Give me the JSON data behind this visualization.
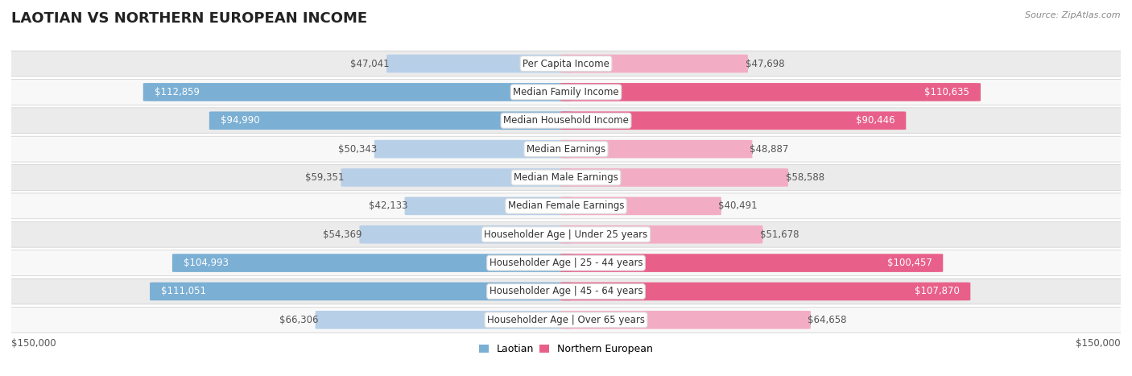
{
  "title": "LAOTIAN VS NORTHERN EUROPEAN INCOME",
  "source": "Source: ZipAtlas.com",
  "categories": [
    "Per Capita Income",
    "Median Family Income",
    "Median Household Income",
    "Median Earnings",
    "Median Male Earnings",
    "Median Female Earnings",
    "Householder Age | Under 25 years",
    "Householder Age | 25 - 44 years",
    "Householder Age | 45 - 64 years",
    "Householder Age | Over 65 years"
  ],
  "laotian_values": [
    47041,
    112859,
    94990,
    50343,
    59351,
    42133,
    54369,
    104993,
    111051,
    66306
  ],
  "northern_european_values": [
    47698,
    110635,
    90446,
    48887,
    58588,
    40491,
    51678,
    100457,
    107870,
    64658
  ],
  "laotian_labels": [
    "$47,041",
    "$112,859",
    "$94,990",
    "$50,343",
    "$59,351",
    "$42,133",
    "$54,369",
    "$104,993",
    "$111,051",
    "$66,306"
  ],
  "northern_european_labels": [
    "$47,698",
    "$110,635",
    "$90,446",
    "$48,887",
    "$58,588",
    "$40,491",
    "$51,678",
    "$100,457",
    "$107,870",
    "$64,658"
  ],
  "max_value": 150000,
  "bar_color_laotian_large": "#7bafd4",
  "bar_color_laotian_small": "#b8cfe8",
  "bar_color_northern_european_large": "#e8608a",
  "bar_color_northern_european_small": "#f2adc4",
  "label_color_inside": "#ffffff",
  "label_color_outside": "#555555",
  "row_bg_odd": "#ebebeb",
  "row_bg_even": "#f8f8f8",
  "category_box_color": "#ffffff",
  "axis_label_left": "$150,000",
  "axis_label_right": "$150,000",
  "legend_laotian": "Laotian",
  "legend_northern_european": "Northern European",
  "title_fontsize": 13,
  "bar_fontsize": 8.5,
  "category_fontsize": 8.5,
  "white_label_threshold": 75000
}
